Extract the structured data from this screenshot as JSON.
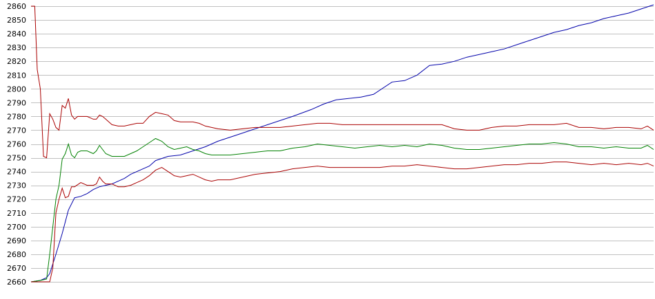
{
  "chart_data": {
    "type": "line",
    "title": "",
    "xlabel": "",
    "ylabel": "",
    "ylim": [
      2660,
      2860
    ],
    "xlim": [
      0,
      100
    ],
    "grid": true,
    "x_tick_labels_shown": false,
    "y_ticks": [
      2660,
      2670,
      2680,
      2690,
      2700,
      2710,
      2720,
      2730,
      2740,
      2750,
      2760,
      2770,
      2780,
      2790,
      2800,
      2810,
      2820,
      2830,
      2840,
      2850,
      2860
    ],
    "colors": {
      "blue": "#0000aa",
      "green": "#008000",
      "red": "#aa0000",
      "grid": "#c0c0c0"
    },
    "series": [
      {
        "color": "#0000aa",
        "points": [
          [
            0,
            2660
          ],
          [
            1.5,
            2661
          ],
          [
            2.5,
            2663
          ],
          [
            3,
            2666
          ],
          [
            4,
            2680
          ],
          [
            5,
            2695
          ],
          [
            6,
            2712
          ],
          [
            7,
            2721
          ],
          [
            8,
            2722
          ],
          [
            9,
            2724
          ],
          [
            10,
            2727
          ],
          [
            11,
            2729
          ],
          [
            12,
            2730
          ],
          [
            13,
            2731
          ],
          [
            14,
            2733
          ],
          [
            15,
            2735
          ],
          [
            16,
            2738
          ],
          [
            17,
            2740
          ],
          [
            18,
            2742
          ],
          [
            19,
            2744
          ],
          [
            20,
            2748
          ],
          [
            22,
            2751
          ],
          [
            24,
            2752
          ],
          [
            26,
            2755
          ],
          [
            28,
            2758
          ],
          [
            30,
            2762
          ],
          [
            32,
            2765
          ],
          [
            34,
            2768
          ],
          [
            36,
            2771
          ],
          [
            38,
            2774
          ],
          [
            40,
            2777
          ],
          [
            42,
            2780
          ],
          [
            45,
            2785
          ],
          [
            47,
            2789
          ],
          [
            49,
            2792
          ],
          [
            51,
            2793
          ],
          [
            53,
            2794
          ],
          [
            55,
            2796
          ],
          [
            58,
            2805
          ],
          [
            60,
            2806
          ],
          [
            62,
            2810
          ],
          [
            64,
            2817
          ],
          [
            66,
            2818
          ],
          [
            68,
            2820
          ],
          [
            70,
            2823
          ],
          [
            72,
            2825
          ],
          [
            74,
            2827
          ],
          [
            76,
            2829
          ],
          [
            78,
            2832
          ],
          [
            80,
            2835
          ],
          [
            82,
            2838
          ],
          [
            84,
            2841
          ],
          [
            86,
            2843
          ],
          [
            88,
            2846
          ],
          [
            90,
            2848
          ],
          [
            92,
            2851
          ],
          [
            94,
            2853
          ],
          [
            96,
            2855
          ],
          [
            98,
            2858
          ],
          [
            100,
            2861
          ]
        ]
      },
      {
        "color": "#008000",
        "points": [
          [
            0,
            2660
          ],
          [
            1.5,
            2661
          ],
          [
            2.5,
            2662
          ],
          [
            3,
            2680
          ],
          [
            4,
            2720
          ],
          [
            4.5,
            2730
          ],
          [
            5,
            2749
          ],
          [
            5.5,
            2753
          ],
          [
            6,
            2760
          ],
          [
            6.5,
            2752
          ],
          [
            7,
            2750
          ],
          [
            7.5,
            2754
          ],
          [
            8,
            2755
          ],
          [
            9,
            2755
          ],
          [
            10,
            2753
          ],
          [
            10.5,
            2755
          ],
          [
            11,
            2759
          ],
          [
            11.5,
            2756
          ],
          [
            12,
            2753
          ],
          [
            13,
            2751
          ],
          [
            14,
            2751
          ],
          [
            15,
            2751
          ],
          [
            16,
            2753
          ],
          [
            17,
            2755
          ],
          [
            18,
            2758
          ],
          [
            19,
            2761
          ],
          [
            20,
            2764
          ],
          [
            21,
            2762
          ],
          [
            22,
            2758
          ],
          [
            23,
            2756
          ],
          [
            24,
            2757
          ],
          [
            25,
            2758
          ],
          [
            26,
            2756
          ],
          [
            27,
            2755
          ],
          [
            28,
            2753
          ],
          [
            29,
            2752
          ],
          [
            30,
            2752
          ],
          [
            32,
            2752
          ],
          [
            34,
            2753
          ],
          [
            36,
            2754
          ],
          [
            38,
            2755
          ],
          [
            40,
            2755
          ],
          [
            42,
            2757
          ],
          [
            44,
            2758
          ],
          [
            46,
            2760
          ],
          [
            48,
            2759
          ],
          [
            50,
            2758
          ],
          [
            52,
            2757
          ],
          [
            54,
            2758
          ],
          [
            56,
            2759
          ],
          [
            58,
            2758
          ],
          [
            60,
            2759
          ],
          [
            62,
            2758
          ],
          [
            64,
            2760
          ],
          [
            66,
            2759
          ],
          [
            68,
            2757
          ],
          [
            70,
            2756
          ],
          [
            72,
            2756
          ],
          [
            74,
            2757
          ],
          [
            76,
            2758
          ],
          [
            78,
            2759
          ],
          [
            80,
            2760
          ],
          [
            82,
            2760
          ],
          [
            84,
            2761
          ],
          [
            86,
            2760
          ],
          [
            88,
            2758
          ],
          [
            90,
            2758
          ],
          [
            92,
            2757
          ],
          [
            94,
            2758
          ],
          [
            96,
            2757
          ],
          [
            98,
            2757
          ],
          [
            99,
            2759
          ],
          [
            100,
            2756
          ]
        ]
      },
      {
        "color": "#aa0000",
        "points": [
          [
            0,
            2860
          ],
          [
            0.6,
            2860
          ],
          [
            1,
            2814
          ],
          [
            1.5,
            2800
          ],
          [
            2,
            2751
          ],
          [
            2.5,
            2750
          ],
          [
            3,
            2782
          ],
          [
            3.5,
            2778
          ],
          [
            4,
            2772
          ],
          [
            4.5,
            2770
          ],
          [
            5,
            2788
          ],
          [
            5.5,
            2786
          ],
          [
            6,
            2793
          ],
          [
            6.5,
            2781
          ],
          [
            7,
            2778
          ],
          [
            7.5,
            2780
          ],
          [
            8,
            2780
          ],
          [
            9,
            2780
          ],
          [
            10,
            2778
          ],
          [
            10.5,
            2778
          ],
          [
            11,
            2781
          ],
          [
            11.5,
            2780
          ],
          [
            12,
            2778
          ],
          [
            13,
            2774
          ],
          [
            14,
            2773
          ],
          [
            15,
            2773
          ],
          [
            16,
            2774
          ],
          [
            17,
            2775
          ],
          [
            18,
            2775
          ],
          [
            19,
            2780
          ],
          [
            20,
            2783
          ],
          [
            21,
            2782
          ],
          [
            22,
            2781
          ],
          [
            23,
            2777
          ],
          [
            24,
            2776
          ],
          [
            25,
            2776
          ],
          [
            26,
            2776
          ],
          [
            27,
            2775
          ],
          [
            28,
            2773
          ],
          [
            29,
            2772
          ],
          [
            30,
            2771
          ],
          [
            32,
            2770
          ],
          [
            34,
            2771
          ],
          [
            36,
            2772
          ],
          [
            38,
            2772
          ],
          [
            40,
            2772
          ],
          [
            42,
            2773
          ],
          [
            44,
            2774
          ],
          [
            46,
            2775
          ],
          [
            48,
            2775
          ],
          [
            50,
            2774
          ],
          [
            52,
            2774
          ],
          [
            54,
            2774
          ],
          [
            56,
            2774
          ],
          [
            58,
            2774
          ],
          [
            60,
            2774
          ],
          [
            62,
            2774
          ],
          [
            64,
            2774
          ],
          [
            66,
            2774
          ],
          [
            68,
            2771
          ],
          [
            70,
            2770
          ],
          [
            72,
            2770
          ],
          [
            74,
            2772
          ],
          [
            76,
            2773
          ],
          [
            78,
            2773
          ],
          [
            80,
            2774
          ],
          [
            82,
            2774
          ],
          [
            84,
            2774
          ],
          [
            86,
            2775
          ],
          [
            88,
            2772
          ],
          [
            90,
            2772
          ],
          [
            92,
            2771
          ],
          [
            94,
            2772
          ],
          [
            96,
            2772
          ],
          [
            98,
            2771
          ],
          [
            99,
            2773
          ],
          [
            100,
            2770
          ]
        ]
      },
      {
        "color": "#aa0000",
        "points": [
          [
            0,
            2660
          ],
          [
            1.5,
            2660
          ],
          [
            2.5,
            2660
          ],
          [
            3,
            2660
          ],
          [
            3.5,
            2670
          ],
          [
            4,
            2710
          ],
          [
            4.5,
            2720
          ],
          [
            5,
            2728
          ],
          [
            5.5,
            2721
          ],
          [
            6,
            2722
          ],
          [
            6.5,
            2729
          ],
          [
            7,
            2729
          ],
          [
            8,
            2732
          ],
          [
            9,
            2730
          ],
          [
            10,
            2730
          ],
          [
            10.5,
            2731
          ],
          [
            11,
            2736
          ],
          [
            11.5,
            2733
          ],
          [
            12,
            2731
          ],
          [
            13,
            2731
          ],
          [
            14,
            2729
          ],
          [
            15,
            2729
          ],
          [
            16,
            2730
          ],
          [
            17,
            2732
          ],
          [
            18,
            2734
          ],
          [
            19,
            2737
          ],
          [
            20,
            2741
          ],
          [
            21,
            2743
          ],
          [
            22,
            2740
          ],
          [
            23,
            2737
          ],
          [
            24,
            2736
          ],
          [
            25,
            2737
          ],
          [
            26,
            2738
          ],
          [
            27,
            2736
          ],
          [
            28,
            2734
          ],
          [
            29,
            2733
          ],
          [
            30,
            2734
          ],
          [
            32,
            2734
          ],
          [
            34,
            2736
          ],
          [
            36,
            2738
          ],
          [
            38,
            2739
          ],
          [
            40,
            2740
          ],
          [
            42,
            2742
          ],
          [
            44,
            2743
          ],
          [
            46,
            2744
          ],
          [
            48,
            2743
          ],
          [
            50,
            2743
          ],
          [
            52,
            2743
          ],
          [
            54,
            2743
          ],
          [
            56,
            2743
          ],
          [
            58,
            2744
          ],
          [
            60,
            2744
          ],
          [
            62,
            2745
          ],
          [
            64,
            2744
          ],
          [
            66,
            2743
          ],
          [
            68,
            2742
          ],
          [
            70,
            2742
          ],
          [
            72,
            2743
          ],
          [
            74,
            2744
          ],
          [
            76,
            2745
          ],
          [
            78,
            2745
          ],
          [
            80,
            2746
          ],
          [
            82,
            2746
          ],
          [
            84,
            2747
          ],
          [
            86,
            2747
          ],
          [
            88,
            2746
          ],
          [
            90,
            2745
          ],
          [
            92,
            2746
          ],
          [
            94,
            2745
          ],
          [
            96,
            2746
          ],
          [
            98,
            2745
          ],
          [
            99,
            2746
          ],
          [
            100,
            2744
          ]
        ]
      }
    ]
  }
}
